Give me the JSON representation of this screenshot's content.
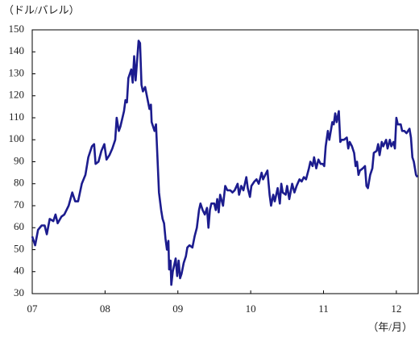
{
  "chart_data": {
    "type": "line",
    "y_label": "（ドル/バレル）",
    "x_label": "（年/月）",
    "xlim": [
      7,
      12.3
    ],
    "xticks": [
      {
        "value": 7,
        "label": "07"
      },
      {
        "value": 8,
        "label": "08"
      },
      {
        "value": 9,
        "label": "09"
      },
      10,
      11,
      12
    ],
    "ylim": [
      30,
      150
    ],
    "yticks": [
      30,
      40,
      50,
      60,
      70,
      80,
      90,
      100,
      110,
      120,
      130,
      140,
      150
    ],
    "series": [
      {
        "color": "#1c1c8e",
        "x": [
          7.0,
          7.04,
          7.08,
          7.13,
          7.17,
          7.2,
          7.24,
          7.29,
          7.32,
          7.35,
          7.4,
          7.44,
          7.5,
          7.55,
          7.59,
          7.63,
          7.68,
          7.73,
          7.77,
          7.82,
          7.85,
          7.87,
          7.91,
          7.95,
          7.99,
          8.02,
          8.06,
          8.1,
          8.14,
          8.16,
          8.19,
          8.21,
          8.26,
          8.28,
          8.3,
          8.32,
          8.36,
          8.38,
          8.4,
          8.42,
          8.46,
          8.48,
          8.5,
          8.52,
          8.55,
          8.58,
          8.61,
          8.63,
          8.64,
          8.68,
          8.7,
          8.72,
          8.74,
          8.77,
          8.79,
          8.81,
          8.83,
          8.85,
          8.87,
          8.88,
          8.9,
          8.91,
          8.93,
          8.97,
          8.99,
          9.01,
          9.03,
          9.05,
          9.08,
          9.11,
          9.13,
          9.16,
          9.2,
          9.23,
          9.26,
          9.29,
          9.31,
          9.34,
          9.37,
          9.4,
          9.42,
          9.44,
          9.46,
          9.5,
          9.52,
          9.54,
          9.56,
          9.58,
          9.62,
          9.65,
          9.68,
          9.72,
          9.75,
          9.78,
          9.82,
          9.84,
          9.87,
          9.9,
          9.94,
          9.96,
          9.99,
          10.01,
          10.05,
          10.08,
          10.11,
          10.15,
          10.17,
          10.2,
          10.23,
          10.26,
          10.28,
          10.31,
          10.33,
          10.37,
          10.4,
          10.42,
          10.44,
          10.48,
          10.5,
          10.53,
          10.57,
          10.6,
          10.63,
          10.67,
          10.7,
          10.73,
          10.76,
          10.8,
          10.82,
          10.85,
          10.87,
          10.9,
          10.93,
          10.96,
          10.99,
          11.01,
          11.03,
          11.06,
          11.08,
          11.12,
          11.14,
          11.16,
          11.18,
          11.21,
          11.23,
          11.25,
          11.28,
          11.32,
          11.34,
          11.36,
          11.39,
          11.42,
          11.44,
          11.46,
          11.48,
          11.5,
          11.54,
          11.57,
          11.59,
          11.61,
          11.64,
          11.67,
          11.69,
          11.73,
          11.75,
          11.77,
          11.8,
          11.82,
          11.86,
          11.88,
          11.91,
          11.93,
          11.96,
          11.98,
          12.0,
          12.02,
          12.06,
          12.08,
          12.11,
          12.14,
          12.18,
          12.2,
          12.22,
          12.24,
          12.27,
          12.29
        ],
        "values": [
          56,
          52,
          59,
          61,
          61,
          57,
          64,
          63,
          66,
          62,
          65,
          66,
          70,
          76,
          72,
          72,
          80,
          84,
          92,
          97,
          98,
          89,
          90,
          95,
          98,
          91,
          93,
          96,
          100,
          110,
          104,
          106,
          113,
          118,
          117,
          128,
          132,
          126,
          138,
          127,
          145,
          144,
          125,
          122,
          124,
          119,
          114,
          116,
          108,
          104,
          107,
          92,
          76,
          68,
          64,
          62,
          55,
          50,
          54,
          41,
          45,
          34,
          40,
          46,
          38,
          45,
          37,
          39,
          44,
          47,
          51,
          52,
          51,
          56,
          60,
          68,
          71,
          68,
          66,
          69,
          60,
          68,
          71,
          71,
          68,
          73,
          67,
          75,
          70,
          79,
          77,
          77,
          76,
          77,
          80,
          75,
          79,
          77,
          83,
          78,
          74,
          79,
          81,
          82,
          80,
          85,
          82,
          84,
          86,
          75,
          70,
          75,
          72,
          78,
          71,
          80,
          76,
          75,
          79,
          73,
          80,
          76,
          79,
          82,
          81,
          83,
          82,
          87,
          90,
          88,
          92,
          87,
          91,
          89,
          89,
          88,
          97,
          104,
          100,
          108,
          107,
          112,
          108,
          113,
          99,
          100,
          100,
          101,
          96,
          99,
          97,
          94,
          88,
          90,
          84,
          86,
          87,
          88,
          79,
          78,
          84,
          87,
          94,
          95,
          98,
          93,
          99,
          97,
          100,
          96,
          100,
          97,
          99,
          96,
          110,
          107,
          107,
          104,
          104,
          103,
          105,
          101,
          92,
          90,
          84,
          83
        ]
      }
    ]
  }
}
